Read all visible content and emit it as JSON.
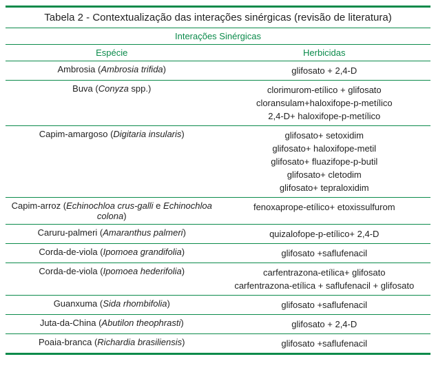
{
  "title": "Tabela 2 - Contextualização das interações sinérgicas (revisão de literatura)",
  "section_header": "Interações Sinérgicas",
  "columns": {
    "species": "Espécie",
    "herbicides": "Herbicidas"
  },
  "colors": {
    "rule": "#0a8a4a",
    "header_text": "#0a8a4a",
    "body_text": "#222222",
    "background": "#ffffff"
  },
  "typography": {
    "title_fontsize_pt": 11,
    "header_fontsize_pt": 10,
    "body_fontsize_pt": 10,
    "font_family": "Segoe UI / Helvetica-like sans-serif"
  },
  "rows": [
    {
      "common": "Ambrosia",
      "scientific": "Ambrosia trifida",
      "herbicides": [
        "glifosato + 2,4-D"
      ]
    },
    {
      "common": "Buva",
      "scientific": "Conyza",
      "scientific_suffix": " spp.",
      "herbicides": [
        "clorimurom-etílico + glifosato",
        "cloransulam+haloxifope-p-metílico",
        "2,4-D+ haloxifope-p-metílico"
      ]
    },
    {
      "common": "Capim-amargoso",
      "scientific": "Digitaria insularis",
      "herbicides": [
        "glifosato+ setoxidim",
        "glifosato+ haloxifope-metil",
        "glifosato+ fluazifope-p-butil",
        "glifosato+ cletodim",
        "glifosato+ tepraloxidim"
      ]
    },
    {
      "common": "Capim-arroz",
      "scientific": "Echinochloa crus-galli",
      "scientific_join": " e ",
      "scientific2": "Echinochloa colona",
      "herbicides": [
        "fenoxaprope-etílico+ etoxissulfurom"
      ]
    },
    {
      "common": "Caruru-palmeri",
      "scientific": "Amaranthus palmeri",
      "herbicides": [
        "quizalofope-p-etílico+ 2,4-D"
      ]
    },
    {
      "common": "Corda-de-viola",
      "scientific": "Ipomoea grandifolia",
      "herbicides": [
        "glifosato +saflufenacil"
      ]
    },
    {
      "common": "Corda-de-viola",
      "scientific": "Ipomoea hederifolia",
      "herbicides": [
        "carfentrazona-etílica+ glifosato",
        "carfentrazona-etílica + saflufenacil + glifosato"
      ]
    },
    {
      "common": "Guanxuma",
      "scientific": "Sida rhombifolia",
      "herbicides": [
        "glifosato +saflufenacil"
      ]
    },
    {
      "common": "Juta-da-China",
      "scientific": "Abutilon theophrasti",
      "herbicides": [
        "glifosato + 2,4-D"
      ]
    },
    {
      "common": "Poaia-branca",
      "scientific": "Richardia brasiliensis",
      "herbicides": [
        "glifosato +saflufenacil"
      ]
    }
  ]
}
